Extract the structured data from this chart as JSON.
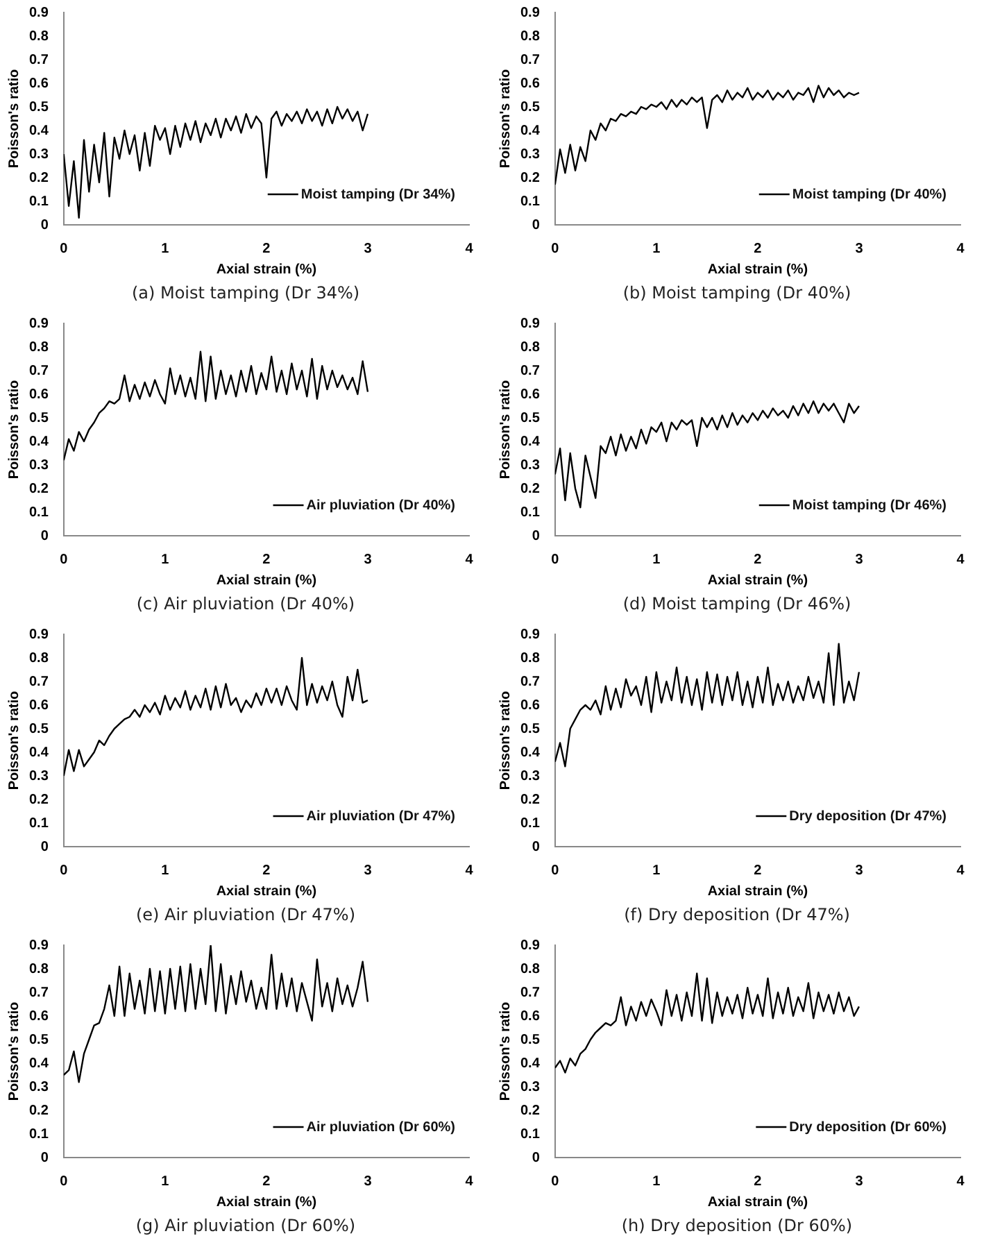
{
  "chart_data": [
    {
      "type": "line",
      "xlabel": "Axial strain (%)",
      "ylabel": "Poisson's ratio",
      "annotations": [
        "(a) Moist tamping (Dr 34%)"
      ],
      "xlim": [
        0,
        4
      ],
      "xticks": [
        0,
        1,
        2,
        3,
        4
      ],
      "ylim": [
        0,
        0.9
      ],
      "yticks": [
        0,
        0.1,
        0.2,
        0.3,
        0.4,
        0.5,
        0.6,
        0.7,
        0.8,
        0.9
      ],
      "grid": false,
      "legend": "bottom right",
      "marker": "none",
      "line_style": "solid",
      "x": [
        0,
        0.05,
        0.1,
        0.15,
        0.2,
        0.25,
        0.3,
        0.35,
        0.4,
        0.45,
        0.5,
        0.55,
        0.6,
        0.65,
        0.7,
        0.75,
        0.8,
        0.85,
        0.9,
        0.95,
        1,
        1.05,
        1.1,
        1.15,
        1.2,
        1.25,
        1.3,
        1.35,
        1.4,
        1.45,
        1.5,
        1.55,
        1.6,
        1.65,
        1.7,
        1.75,
        1.8,
        1.85,
        1.9,
        1.95,
        2,
        2.05,
        2.1,
        2.15,
        2.2,
        2.25,
        2.3,
        2.35,
        2.4,
        2.45,
        2.5,
        2.55,
        2.6,
        2.65,
        2.7,
        2.75,
        2.8,
        2.85,
        2.9,
        2.95,
        3
      ],
      "series": [
        {
          "name": "Moist tamping (Dr 34%)",
          "color": "#000000",
          "values": [
            0.3,
            0.08,
            0.27,
            0.03,
            0.36,
            0.14,
            0.34,
            0.18,
            0.39,
            0.12,
            0.37,
            0.28,
            0.4,
            0.3,
            0.38,
            0.23,
            0.39,
            0.25,
            0.42,
            0.36,
            0.41,
            0.3,
            0.42,
            0.33,
            0.43,
            0.36,
            0.44,
            0.35,
            0.43,
            0.38,
            0.45,
            0.37,
            0.45,
            0.4,
            0.46,
            0.39,
            0.47,
            0.41,
            0.46,
            0.43,
            0.2,
            0.45,
            0.48,
            0.42,
            0.47,
            0.44,
            0.48,
            0.43,
            0.49,
            0.44,
            0.48,
            0.42,
            0.49,
            0.43,
            0.5,
            0.45,
            0.49,
            0.44,
            0.48,
            0.4,
            0.47
          ]
        }
      ]
    },
    {
      "type": "line",
      "xlabel": "Axial strain (%)",
      "ylabel": "Poisson's ratio",
      "annotations": [
        "(b) Moist tamping (Dr 40%)"
      ],
      "xlim": [
        0,
        4
      ],
      "xticks": [
        0,
        1,
        2,
        3,
        4
      ],
      "ylim": [
        0,
        0.9
      ],
      "yticks": [
        0,
        0.1,
        0.2,
        0.3,
        0.4,
        0.5,
        0.6,
        0.7,
        0.8,
        0.9
      ],
      "grid": false,
      "legend": "bottom right",
      "marker": "none",
      "line_style": "solid",
      "x": [
        0,
        0.05,
        0.1,
        0.15,
        0.2,
        0.25,
        0.3,
        0.35,
        0.4,
        0.45,
        0.5,
        0.55,
        0.6,
        0.65,
        0.7,
        0.75,
        0.8,
        0.85,
        0.9,
        0.95,
        1,
        1.05,
        1.1,
        1.15,
        1.2,
        1.25,
        1.3,
        1.35,
        1.4,
        1.45,
        1.5,
        1.55,
        1.6,
        1.65,
        1.7,
        1.75,
        1.8,
        1.85,
        1.9,
        1.95,
        2,
        2.05,
        2.1,
        2.15,
        2.2,
        2.25,
        2.3,
        2.35,
        2.4,
        2.45,
        2.5,
        2.55,
        2.6,
        2.65,
        2.7,
        2.75,
        2.8,
        2.85,
        2.9,
        2.95,
        3
      ],
      "series": [
        {
          "name": "Moist tamping (Dr 40%)",
          "color": "#000000",
          "values": [
            0.17,
            0.32,
            0.22,
            0.34,
            0.23,
            0.33,
            0.27,
            0.4,
            0.36,
            0.43,
            0.4,
            0.45,
            0.44,
            0.47,
            0.46,
            0.48,
            0.47,
            0.5,
            0.49,
            0.51,
            0.5,
            0.52,
            0.49,
            0.53,
            0.5,
            0.53,
            0.51,
            0.54,
            0.52,
            0.54,
            0.41,
            0.53,
            0.55,
            0.52,
            0.57,
            0.53,
            0.56,
            0.54,
            0.58,
            0.53,
            0.56,
            0.54,
            0.57,
            0.53,
            0.56,
            0.54,
            0.57,
            0.53,
            0.56,
            0.55,
            0.58,
            0.52,
            0.59,
            0.54,
            0.58,
            0.55,
            0.57,
            0.54,
            0.56,
            0.55,
            0.56
          ]
        }
      ]
    },
    {
      "type": "line",
      "xlabel": "Axial strain (%)",
      "ylabel": "Poisson's ratio",
      "annotations": [
        "(c) Air pluviation (Dr 40%)"
      ],
      "xlim": [
        0,
        4
      ],
      "xticks": [
        0,
        1,
        2,
        3,
        4
      ],
      "ylim": [
        0,
        0.9
      ],
      "yticks": [
        0,
        0.1,
        0.2,
        0.3,
        0.4,
        0.5,
        0.6,
        0.7,
        0.8,
        0.9
      ],
      "grid": false,
      "legend": "bottom right",
      "marker": "none",
      "line_style": "solid",
      "x": [
        0,
        0.05,
        0.1,
        0.15,
        0.2,
        0.25,
        0.3,
        0.35,
        0.4,
        0.45,
        0.5,
        0.55,
        0.6,
        0.65,
        0.7,
        0.75,
        0.8,
        0.85,
        0.9,
        0.95,
        1,
        1.05,
        1.1,
        1.15,
        1.2,
        1.25,
        1.3,
        1.35,
        1.4,
        1.45,
        1.5,
        1.55,
        1.6,
        1.65,
        1.7,
        1.75,
        1.8,
        1.85,
        1.9,
        1.95,
        2,
        2.05,
        2.1,
        2.15,
        2.2,
        2.25,
        2.3,
        2.35,
        2.4,
        2.45,
        2.5,
        2.55,
        2.6,
        2.65,
        2.7,
        2.75,
        2.8,
        2.85,
        2.9,
        2.95,
        3
      ],
      "series": [
        {
          "name": "Air pluviation (Dr 40%)",
          "color": "#000000",
          "values": [
            0.32,
            0.41,
            0.36,
            0.44,
            0.4,
            0.45,
            0.48,
            0.52,
            0.54,
            0.57,
            0.56,
            0.58,
            0.68,
            0.57,
            0.64,
            0.58,
            0.65,
            0.59,
            0.66,
            0.6,
            0.56,
            0.71,
            0.6,
            0.68,
            0.59,
            0.67,
            0.58,
            0.78,
            0.57,
            0.76,
            0.58,
            0.7,
            0.6,
            0.68,
            0.59,
            0.7,
            0.61,
            0.72,
            0.6,
            0.69,
            0.62,
            0.76,
            0.61,
            0.7,
            0.6,
            0.73,
            0.62,
            0.7,
            0.59,
            0.75,
            0.58,
            0.72,
            0.62,
            0.7,
            0.63,
            0.68,
            0.62,
            0.67,
            0.6,
            0.74,
            0.61
          ]
        }
      ]
    },
    {
      "type": "line",
      "xlabel": "Axial strain (%)",
      "ylabel": "Poisson's ratio",
      "annotations": [
        "(d) Moist tamping (Dr 46%)"
      ],
      "xlim": [
        0,
        4
      ],
      "xticks": [
        0,
        1,
        2,
        3,
        4
      ],
      "ylim": [
        0,
        0.9
      ],
      "yticks": [
        0,
        0.1,
        0.2,
        0.3,
        0.4,
        0.5,
        0.6,
        0.7,
        0.8,
        0.9
      ],
      "grid": false,
      "legend": "bottom right",
      "marker": "none",
      "line_style": "solid",
      "x": [
        0,
        0.05,
        0.1,
        0.15,
        0.2,
        0.25,
        0.3,
        0.35,
        0.4,
        0.45,
        0.5,
        0.55,
        0.6,
        0.65,
        0.7,
        0.75,
        0.8,
        0.85,
        0.9,
        0.95,
        1,
        1.05,
        1.1,
        1.15,
        1.2,
        1.25,
        1.3,
        1.35,
        1.4,
        1.45,
        1.5,
        1.55,
        1.6,
        1.65,
        1.7,
        1.75,
        1.8,
        1.85,
        1.9,
        1.95,
        2,
        2.05,
        2.1,
        2.15,
        2.2,
        2.25,
        2.3,
        2.35,
        2.4,
        2.45,
        2.5,
        2.55,
        2.6,
        2.65,
        2.7,
        2.75,
        2.8,
        2.85,
        2.9,
        2.95,
        3
      ],
      "series": [
        {
          "name": "Moist tamping (Dr 46%)",
          "color": "#000000",
          "values": [
            0.26,
            0.37,
            0.15,
            0.35,
            0.2,
            0.12,
            0.34,
            0.25,
            0.16,
            0.38,
            0.35,
            0.42,
            0.34,
            0.43,
            0.36,
            0.42,
            0.37,
            0.45,
            0.39,
            0.46,
            0.44,
            0.48,
            0.4,
            0.48,
            0.45,
            0.49,
            0.47,
            0.49,
            0.38,
            0.5,
            0.46,
            0.5,
            0.45,
            0.51,
            0.46,
            0.52,
            0.47,
            0.51,
            0.48,
            0.52,
            0.49,
            0.53,
            0.5,
            0.54,
            0.51,
            0.53,
            0.5,
            0.55,
            0.51,
            0.56,
            0.52,
            0.57,
            0.52,
            0.56,
            0.53,
            0.56,
            0.52,
            0.48,
            0.56,
            0.52,
            0.55
          ]
        }
      ]
    },
    {
      "type": "line",
      "xlabel": "Axial strain (%)",
      "ylabel": "Poisson's ratio",
      "annotations": [
        "(e) Air pluviation (Dr 47%)"
      ],
      "xlim": [
        0,
        4
      ],
      "xticks": [
        0,
        1,
        2,
        3,
        4
      ],
      "ylim": [
        0,
        0.9
      ],
      "yticks": [
        0,
        0.1,
        0.2,
        0.3,
        0.4,
        0.5,
        0.6,
        0.7,
        0.8,
        0.9
      ],
      "grid": false,
      "legend": "bottom right",
      "marker": "none",
      "line_style": "solid",
      "x": [
        0,
        0.05,
        0.1,
        0.15,
        0.2,
        0.25,
        0.3,
        0.35,
        0.4,
        0.45,
        0.5,
        0.55,
        0.6,
        0.65,
        0.7,
        0.75,
        0.8,
        0.85,
        0.9,
        0.95,
        1,
        1.05,
        1.1,
        1.15,
        1.2,
        1.25,
        1.3,
        1.35,
        1.4,
        1.45,
        1.5,
        1.55,
        1.6,
        1.65,
        1.7,
        1.75,
        1.8,
        1.85,
        1.9,
        1.95,
        2,
        2.05,
        2.1,
        2.15,
        2.2,
        2.25,
        2.3,
        2.35,
        2.4,
        2.45,
        2.5,
        2.55,
        2.6,
        2.65,
        2.7,
        2.75,
        2.8,
        2.85,
        2.9,
        2.95,
        3
      ],
      "series": [
        {
          "name": "Air pluviation (Dr 47%)",
          "color": "#000000",
          "values": [
            0.3,
            0.41,
            0.32,
            0.41,
            0.34,
            0.37,
            0.4,
            0.45,
            0.43,
            0.47,
            0.5,
            0.52,
            0.54,
            0.55,
            0.58,
            0.55,
            0.6,
            0.57,
            0.61,
            0.56,
            0.64,
            0.58,
            0.63,
            0.59,
            0.66,
            0.58,
            0.64,
            0.59,
            0.67,
            0.58,
            0.68,
            0.59,
            0.69,
            0.6,
            0.63,
            0.57,
            0.62,
            0.59,
            0.65,
            0.6,
            0.67,
            0.61,
            0.67,
            0.6,
            0.68,
            0.62,
            0.58,
            0.8,
            0.6,
            0.69,
            0.61,
            0.68,
            0.62,
            0.7,
            0.6,
            0.55,
            0.72,
            0.62,
            0.75,
            0.61,
            0.62
          ]
        }
      ]
    },
    {
      "type": "line",
      "xlabel": "Axial strain (%)",
      "ylabel": "Poisson's ratio",
      "annotations": [
        "(f) Dry deposition (Dr 47%)"
      ],
      "xlim": [
        0,
        4
      ],
      "xticks": [
        0,
        1,
        2,
        3,
        4
      ],
      "ylim": [
        0,
        0.9
      ],
      "yticks": [
        0,
        0.1,
        0.2,
        0.3,
        0.4,
        0.5,
        0.6,
        0.7,
        0.8,
        0.9
      ],
      "grid": false,
      "legend": "bottom right",
      "marker": "none",
      "line_style": "solid",
      "x": [
        0,
        0.05,
        0.1,
        0.15,
        0.2,
        0.25,
        0.3,
        0.35,
        0.4,
        0.45,
        0.5,
        0.55,
        0.6,
        0.65,
        0.7,
        0.75,
        0.8,
        0.85,
        0.9,
        0.95,
        1,
        1.05,
        1.1,
        1.15,
        1.2,
        1.25,
        1.3,
        1.35,
        1.4,
        1.45,
        1.5,
        1.55,
        1.6,
        1.65,
        1.7,
        1.75,
        1.8,
        1.85,
        1.9,
        1.95,
        2,
        2.05,
        2.1,
        2.15,
        2.2,
        2.25,
        2.3,
        2.35,
        2.4,
        2.45,
        2.5,
        2.55,
        2.6,
        2.65,
        2.7,
        2.75,
        2.8,
        2.85,
        2.9,
        2.95,
        3
      ],
      "series": [
        {
          "name": "Dry deposition (Dr 47%)",
          "color": "#000000",
          "values": [
            0.36,
            0.44,
            0.34,
            0.5,
            0.54,
            0.58,
            0.6,
            0.58,
            0.62,
            0.56,
            0.68,
            0.58,
            0.67,
            0.59,
            0.71,
            0.64,
            0.68,
            0.6,
            0.72,
            0.57,
            0.74,
            0.61,
            0.7,
            0.62,
            0.76,
            0.61,
            0.72,
            0.6,
            0.71,
            0.58,
            0.74,
            0.61,
            0.73,
            0.6,
            0.72,
            0.62,
            0.74,
            0.6,
            0.7,
            0.59,
            0.72,
            0.61,
            0.76,
            0.6,
            0.69,
            0.62,
            0.7,
            0.61,
            0.68,
            0.62,
            0.72,
            0.63,
            0.7,
            0.61,
            0.82,
            0.6,
            0.86,
            0.61,
            0.7,
            0.62,
            0.74
          ]
        }
      ]
    },
    {
      "type": "line",
      "xlabel": "Axial strain (%)",
      "ylabel": "Poisson's ratio",
      "annotations": [
        "(g) Air pluviation (Dr 60%)"
      ],
      "xlim": [
        0,
        4
      ],
      "xticks": [
        0,
        1,
        2,
        3,
        4
      ],
      "ylim": [
        0,
        0.9
      ],
      "yticks": [
        0,
        0.1,
        0.2,
        0.3,
        0.4,
        0.5,
        0.6,
        0.7,
        0.8,
        0.9
      ],
      "grid": false,
      "legend": "bottom right",
      "marker": "none",
      "line_style": "solid",
      "x": [
        0,
        0.05,
        0.1,
        0.15,
        0.2,
        0.25,
        0.3,
        0.35,
        0.4,
        0.45,
        0.5,
        0.55,
        0.6,
        0.65,
        0.7,
        0.75,
        0.8,
        0.85,
        0.9,
        0.95,
        1,
        1.05,
        1.1,
        1.15,
        1.2,
        1.25,
        1.3,
        1.35,
        1.4,
        1.45,
        1.5,
        1.55,
        1.6,
        1.65,
        1.7,
        1.75,
        1.8,
        1.85,
        1.9,
        1.95,
        2,
        2.05,
        2.1,
        2.15,
        2.2,
        2.25,
        2.3,
        2.35,
        2.4,
        2.45,
        2.5,
        2.55,
        2.6,
        2.65,
        2.7,
        2.75,
        2.8,
        2.85,
        2.9,
        2.95,
        3
      ],
      "series": [
        {
          "name": "Air pluviation (Dr 60%)",
          "color": "#000000",
          "values": [
            0.35,
            0.37,
            0.45,
            0.32,
            0.44,
            0.5,
            0.56,
            0.57,
            0.63,
            0.73,
            0.6,
            0.81,
            0.6,
            0.78,
            0.63,
            0.75,
            0.61,
            0.8,
            0.62,
            0.79,
            0.61,
            0.8,
            0.63,
            0.81,
            0.62,
            0.82,
            0.63,
            0.8,
            0.65,
            0.9,
            0.62,
            0.82,
            0.61,
            0.77,
            0.65,
            0.79,
            0.66,
            0.75,
            0.63,
            0.72,
            0.63,
            0.86,
            0.63,
            0.78,
            0.64,
            0.76,
            0.62,
            0.74,
            0.66,
            0.58,
            0.84,
            0.64,
            0.74,
            0.62,
            0.76,
            0.65,
            0.73,
            0.64,
            0.72,
            0.83,
            0.66
          ]
        }
      ]
    },
    {
      "type": "line",
      "xlabel": "Axial strain (%)",
      "ylabel": "Poisson's ratio",
      "annotations": [
        "(h) Dry deposition (Dr 60%)"
      ],
      "xlim": [
        0,
        4
      ],
      "xticks": [
        0,
        1,
        2,
        3,
        4
      ],
      "ylim": [
        0,
        0.9
      ],
      "yticks": [
        0,
        0.1,
        0.2,
        0.3,
        0.4,
        0.5,
        0.6,
        0.7,
        0.8,
        0.9
      ],
      "grid": false,
      "legend": "bottom right",
      "marker": "none",
      "line_style": "solid",
      "x": [
        0,
        0.05,
        0.1,
        0.15,
        0.2,
        0.25,
        0.3,
        0.35,
        0.4,
        0.45,
        0.5,
        0.55,
        0.6,
        0.65,
        0.7,
        0.75,
        0.8,
        0.85,
        0.9,
        0.95,
        1,
        1.05,
        1.1,
        1.15,
        1.2,
        1.25,
        1.3,
        1.35,
        1.4,
        1.45,
        1.5,
        1.55,
        1.6,
        1.65,
        1.7,
        1.75,
        1.8,
        1.85,
        1.9,
        1.95,
        2,
        2.05,
        2.1,
        2.15,
        2.2,
        2.25,
        2.3,
        2.35,
        2.4,
        2.45,
        2.5,
        2.55,
        2.6,
        2.65,
        2.7,
        2.75,
        2.8,
        2.85,
        2.9,
        2.95,
        3
      ],
      "series": [
        {
          "name": "Dry deposition (Dr 60%)",
          "color": "#000000",
          "values": [
            0.38,
            0.41,
            0.36,
            0.42,
            0.39,
            0.44,
            0.46,
            0.5,
            0.53,
            0.55,
            0.57,
            0.56,
            0.58,
            0.68,
            0.56,
            0.64,
            0.58,
            0.66,
            0.6,
            0.67,
            0.62,
            0.56,
            0.71,
            0.6,
            0.69,
            0.58,
            0.7,
            0.6,
            0.78,
            0.58,
            0.76,
            0.57,
            0.7,
            0.6,
            0.68,
            0.61,
            0.69,
            0.59,
            0.72,
            0.61,
            0.69,
            0.6,
            0.76,
            0.59,
            0.7,
            0.61,
            0.72,
            0.6,
            0.68,
            0.62,
            0.74,
            0.59,
            0.7,
            0.62,
            0.69,
            0.61,
            0.7,
            0.62,
            0.68,
            0.6,
            0.64
          ]
        }
      ]
    }
  ]
}
